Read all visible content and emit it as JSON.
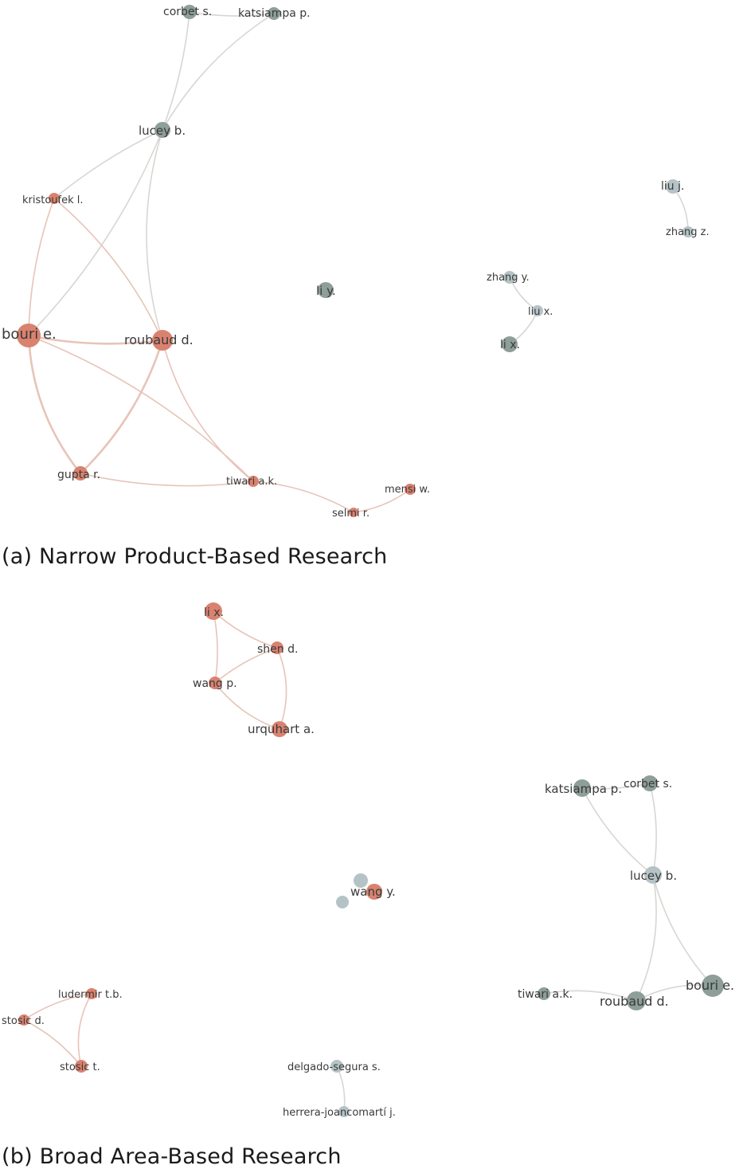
{
  "colors": {
    "cluster_red": "#d9826f",
    "cluster_dark": "#8e9e98",
    "cluster_light": "#b5c3c6",
    "edge_red": "#e7c4b8",
    "edge_grey": "#d9d6d2"
  },
  "panel_a": {
    "caption": "(a) Narrow Product-Based Research",
    "nodes": [
      {
        "id": "corbet",
        "label": "corbet s.",
        "color": "cluster_dark"
      },
      {
        "id": "katsiampa",
        "label": "katsiampa p.",
        "color": "cluster_dark"
      },
      {
        "id": "lucey",
        "label": "lucey b.",
        "color": "cluster_dark"
      },
      {
        "id": "kristoufek",
        "label": "kristoufek l.",
        "color": "cluster_red"
      },
      {
        "id": "bouri",
        "label": "bouri e.",
        "color": "cluster_red"
      },
      {
        "id": "roubaud",
        "label": "roubaud d.",
        "color": "cluster_red"
      },
      {
        "id": "gupta",
        "label": "gupta r.",
        "color": "cluster_red"
      },
      {
        "id": "tiwari",
        "label": "tiwari a.k.",
        "color": "cluster_red"
      },
      {
        "id": "selmi",
        "label": "selmi r.",
        "color": "cluster_red"
      },
      {
        "id": "mensi",
        "label": "mensi w.",
        "color": "cluster_red"
      },
      {
        "id": "liy",
        "label": "li y.",
        "color": "cluster_dark"
      },
      {
        "id": "zhangy",
        "label": "zhang y.",
        "color": "cluster_light"
      },
      {
        "id": "liux",
        "label": "liu x.",
        "color": "cluster_light"
      },
      {
        "id": "lix",
        "label": "li x.",
        "color": "cluster_dark"
      },
      {
        "id": "liuj",
        "label": "liu j.",
        "color": "cluster_light"
      },
      {
        "id": "zhangz",
        "label": "zhang z.",
        "color": "cluster_light"
      }
    ],
    "edges": [
      [
        "corbet",
        "katsiampa"
      ],
      [
        "corbet",
        "lucey"
      ],
      [
        "katsiampa",
        "lucey"
      ],
      [
        "lucey",
        "kristoufek"
      ],
      [
        "lucey",
        "roubaud"
      ],
      [
        "lucey",
        "bouri"
      ],
      [
        "kristoufek",
        "bouri"
      ],
      [
        "kristoufek",
        "roubaud"
      ],
      [
        "bouri",
        "roubaud"
      ],
      [
        "bouri",
        "gupta"
      ],
      [
        "bouri",
        "tiwari"
      ],
      [
        "roubaud",
        "gupta"
      ],
      [
        "roubaud",
        "tiwari"
      ],
      [
        "gupta",
        "tiwari"
      ],
      [
        "tiwari",
        "selmi"
      ],
      [
        "selmi",
        "mensi"
      ],
      [
        "zhangy",
        "liux"
      ],
      [
        "liux",
        "lix"
      ],
      [
        "liuj",
        "zhangz"
      ]
    ]
  },
  "panel_b": {
    "caption": "(b) Broad Area-Based Research",
    "nodes": [
      {
        "id": "lix",
        "label": "li x.",
        "color": "cluster_red"
      },
      {
        "id": "shen",
        "label": "shen d.",
        "color": "cluster_red"
      },
      {
        "id": "wangp",
        "label": "wang p.",
        "color": "cluster_red"
      },
      {
        "id": "urquhart",
        "label": "urquhart a.",
        "color": "cluster_red"
      },
      {
        "id": "katsiampa",
        "label": "katsiampa p.",
        "color": "cluster_dark"
      },
      {
        "id": "corbet",
        "label": "corbet s.",
        "color": "cluster_dark"
      },
      {
        "id": "lucey",
        "label": "lucey b.",
        "color": "cluster_light"
      },
      {
        "id": "bouri",
        "label": "bouri e.",
        "color": "cluster_dark"
      },
      {
        "id": "roubaud",
        "label": "roubaud d.",
        "color": "cluster_dark"
      },
      {
        "id": "tiwari",
        "label": "tiwari a.k.",
        "color": "cluster_dark"
      },
      {
        "id": "wangy",
        "label": "wang y.",
        "color": "cluster_red"
      },
      {
        "id": "blue1",
        "label": "",
        "color": "cluster_light"
      },
      {
        "id": "blue2",
        "label": "",
        "color": "cluster_light"
      },
      {
        "id": "ludermir",
        "label": "ludermir t.b.",
        "color": "cluster_red"
      },
      {
        "id": "stosicd",
        "label": "stosic d.",
        "color": "cluster_red"
      },
      {
        "id": "stosict",
        "label": "stosic t.",
        "color": "cluster_red"
      },
      {
        "id": "delgado",
        "label": "delgado-segura s.",
        "color": "cluster_light"
      },
      {
        "id": "herrera",
        "label": "herrera-joancomartí j.",
        "color": "cluster_light"
      }
    ],
    "edges": [
      [
        "lix",
        "shen"
      ],
      [
        "lix",
        "wangp"
      ],
      [
        "shen",
        "wangp"
      ],
      [
        "shen",
        "urquhart"
      ],
      [
        "wangp",
        "urquhart"
      ],
      [
        "katsiampa",
        "corbet"
      ],
      [
        "katsiampa",
        "lucey"
      ],
      [
        "corbet",
        "lucey"
      ],
      [
        "lucey",
        "bouri"
      ],
      [
        "lucey",
        "roubaud"
      ],
      [
        "bouri",
        "roubaud"
      ],
      [
        "roubaud",
        "tiwari"
      ],
      [
        "ludermir",
        "stosicd"
      ],
      [
        "ludermir",
        "stosict"
      ],
      [
        "stosicd",
        "stosict"
      ],
      [
        "delgado",
        "herrera"
      ]
    ]
  }
}
